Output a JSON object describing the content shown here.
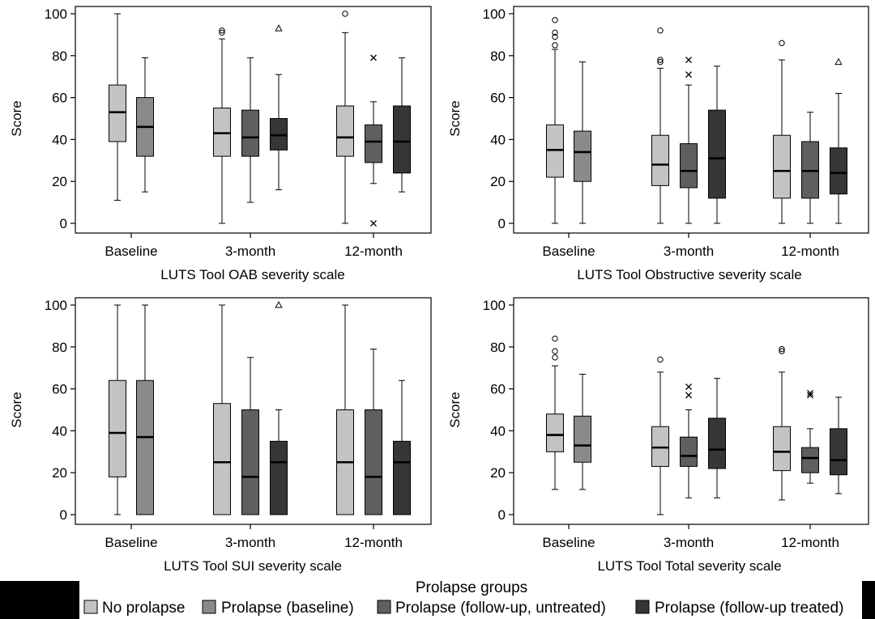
{
  "y_axis_label": "Score",
  "legend": {
    "title": "Prolapse groups",
    "items": [
      {
        "label": "No prolapse",
        "color": "#c3c3c3"
      },
      {
        "label": "Prolapse (baseline)",
        "color": "#8a8a8a"
      },
      {
        "label": "Prolapse (follow-up, untreated)",
        "color": "#5f5f5f"
      },
      {
        "label": "Prolapse (follow-up treated)",
        "color": "#363636"
      }
    ]
  },
  "chart_data": [
    {
      "type": "box",
      "xlabel": "LUTS Tool OAB severity scale",
      "ylabel": "Score",
      "ylim": [
        0,
        100
      ],
      "yticks": [
        0,
        20,
        40,
        60,
        80,
        100
      ],
      "categories": [
        "Baseline",
        "3-month",
        "12-month"
      ],
      "boxes": [
        {
          "category": "Baseline",
          "group": 0,
          "min": 11,
          "q1": 39,
          "median": 53,
          "q3": 66,
          "max": 100,
          "outliers": []
        },
        {
          "category": "Baseline",
          "group": 1,
          "min": 15,
          "q1": 32,
          "median": 46,
          "q3": 60,
          "max": 79,
          "outliers": []
        },
        {
          "category": "3-month",
          "group": 0,
          "min": 0,
          "q1": 32,
          "median": 43,
          "q3": 55,
          "max": 88,
          "outliers": [
            {
              "v": 92,
              "m": "o"
            },
            {
              "v": 91,
              "m": "o"
            }
          ]
        },
        {
          "category": "3-month",
          "group": 2,
          "min": 10,
          "q1": 32,
          "median": 41,
          "q3": 54,
          "max": 79,
          "outliers": []
        },
        {
          "category": "3-month",
          "group": 3,
          "min": 16,
          "q1": 35,
          "median": 42,
          "q3": 50,
          "max": 71,
          "outliers": [
            {
              "v": 93,
              "m": "^"
            }
          ]
        },
        {
          "category": "12-month",
          "group": 0,
          "min": 0,
          "q1": 32,
          "median": 41,
          "q3": 56,
          "max": 91,
          "outliers": [
            {
              "v": 100,
              "m": "o"
            }
          ]
        },
        {
          "category": "12-month",
          "group": 2,
          "min": 19,
          "q1": 29,
          "median": 39,
          "q3": 47,
          "max": 58,
          "outliers": [
            {
              "v": 79,
              "m": "x"
            },
            {
              "v": 0,
              "m": "x"
            }
          ]
        },
        {
          "category": "12-month",
          "group": 3,
          "min": 15,
          "q1": 24,
          "median": 39,
          "q3": 56,
          "max": 79,
          "outliers": []
        }
      ]
    },
    {
      "type": "box",
      "xlabel": "LUTS Tool Obstructive severity scale",
      "ylabel": "Score",
      "ylim": [
        0,
        100
      ],
      "yticks": [
        0,
        20,
        40,
        60,
        80,
        100
      ],
      "categories": [
        "Baseline",
        "3-month",
        "12-month"
      ],
      "boxes": [
        {
          "category": "Baseline",
          "group": 0,
          "min": 0,
          "q1": 22,
          "median": 35,
          "q3": 47,
          "max": 83,
          "outliers": [
            {
              "v": 97,
              "m": "o"
            },
            {
              "v": 91,
              "m": "o"
            },
            {
              "v": 89,
              "m": "o"
            },
            {
              "v": 85,
              "m": "o"
            }
          ]
        },
        {
          "category": "Baseline",
          "group": 1,
          "min": 0,
          "q1": 20,
          "median": 34,
          "q3": 44,
          "max": 77,
          "outliers": []
        },
        {
          "category": "3-month",
          "group": 0,
          "min": 0,
          "q1": 18,
          "median": 28,
          "q3": 42,
          "max": 74,
          "outliers": [
            {
              "v": 92,
              "m": "o"
            },
            {
              "v": 78,
              "m": "o"
            },
            {
              "v": 77,
              "m": "o"
            }
          ]
        },
        {
          "category": "3-month",
          "group": 2,
          "min": 0,
          "q1": 17,
          "median": 25,
          "q3": 38,
          "max": 66,
          "outliers": [
            {
              "v": 78,
              "m": "x"
            },
            {
              "v": 71,
              "m": "x"
            }
          ]
        },
        {
          "category": "3-month",
          "group": 3,
          "min": 0,
          "q1": 12,
          "median": 31,
          "q3": 54,
          "max": 75,
          "outliers": []
        },
        {
          "category": "12-month",
          "group": 0,
          "min": 0,
          "q1": 12,
          "median": 25,
          "q3": 42,
          "max": 78,
          "outliers": [
            {
              "v": 86,
              "m": "o"
            }
          ]
        },
        {
          "category": "12-month",
          "group": 2,
          "min": 0,
          "q1": 12,
          "median": 25,
          "q3": 39,
          "max": 53,
          "outliers": []
        },
        {
          "category": "12-month",
          "group": 3,
          "min": 0,
          "q1": 14,
          "median": 24,
          "q3": 36,
          "max": 62,
          "outliers": [
            {
              "v": 77,
              "m": "^"
            }
          ]
        }
      ]
    },
    {
      "type": "box",
      "xlabel": "LUTS Tool SUI severity scale",
      "ylabel": "Score",
      "ylim": [
        0,
        100
      ],
      "yticks": [
        0,
        20,
        40,
        60,
        80,
        100
      ],
      "categories": [
        "Baseline",
        "3-month",
        "12-month"
      ],
      "boxes": [
        {
          "category": "Baseline",
          "group": 0,
          "min": 0,
          "q1": 18,
          "median": 39,
          "q3": 64,
          "max": 100,
          "outliers": []
        },
        {
          "category": "Baseline",
          "group": 1,
          "min": 0,
          "q1": 0,
          "median": 37,
          "q3": 64,
          "max": 100,
          "outliers": []
        },
        {
          "category": "3-month",
          "group": 0,
          "min": 0,
          "q1": 0,
          "median": 25,
          "q3": 53,
          "max": 100,
          "outliers": []
        },
        {
          "category": "3-month",
          "group": 2,
          "min": 0,
          "q1": 0,
          "median": 18,
          "q3": 50,
          "max": 75,
          "outliers": []
        },
        {
          "category": "3-month",
          "group": 3,
          "min": 0,
          "q1": 0,
          "median": 25,
          "q3": 35,
          "max": 50,
          "outliers": [
            {
              "v": 100,
              "m": "^"
            }
          ]
        },
        {
          "category": "12-month",
          "group": 0,
          "min": 0,
          "q1": 0,
          "median": 25,
          "q3": 50,
          "max": 100,
          "outliers": []
        },
        {
          "category": "12-month",
          "group": 2,
          "min": 0,
          "q1": 0,
          "median": 18,
          "q3": 50,
          "max": 79,
          "outliers": []
        },
        {
          "category": "12-month",
          "group": 3,
          "min": 0,
          "q1": 0,
          "median": 25,
          "q3": 35,
          "max": 64,
          "outliers": []
        }
      ]
    },
    {
      "type": "box",
      "xlabel": "LUTS Tool Total severity scale",
      "ylabel": "Score",
      "ylim": [
        0,
        100
      ],
      "yticks": [
        0,
        20,
        40,
        60,
        80,
        100
      ],
      "categories": [
        "Baseline",
        "3-month",
        "12-month"
      ],
      "boxes": [
        {
          "category": "Baseline",
          "group": 0,
          "min": 12,
          "q1": 30,
          "median": 38,
          "q3": 48,
          "max": 71,
          "outliers": [
            {
              "v": 84,
              "m": "o"
            },
            {
              "v": 78,
              "m": "o"
            },
            {
              "v": 75,
              "m": "o"
            }
          ]
        },
        {
          "category": "Baseline",
          "group": 1,
          "min": 12,
          "q1": 25,
          "median": 33,
          "q3": 47,
          "max": 67,
          "outliers": []
        },
        {
          "category": "3-month",
          "group": 0,
          "min": 0,
          "q1": 23,
          "median": 32,
          "q3": 42,
          "max": 68,
          "outliers": [
            {
              "v": 74,
              "m": "o"
            }
          ]
        },
        {
          "category": "3-month",
          "group": 2,
          "min": 8,
          "q1": 23,
          "median": 28,
          "q3": 37,
          "max": 50,
          "outliers": [
            {
              "v": 61,
              "m": "x"
            },
            {
              "v": 57,
              "m": "x"
            }
          ]
        },
        {
          "category": "3-month",
          "group": 3,
          "min": 8,
          "q1": 22,
          "median": 31,
          "q3": 46,
          "max": 65,
          "outliers": []
        },
        {
          "category": "12-month",
          "group": 0,
          "min": 7,
          "q1": 21,
          "median": 30,
          "q3": 42,
          "max": 68,
          "outliers": [
            {
              "v": 79,
              "m": "o"
            },
            {
              "v": 78,
              "m": "o"
            }
          ]
        },
        {
          "category": "12-month",
          "group": 2,
          "min": 15,
          "q1": 20,
          "median": 27,
          "q3": 32,
          "max": 41,
          "outliers": [
            {
              "v": 58,
              "m": "x"
            },
            {
              "v": 57,
              "m": "x"
            }
          ]
        },
        {
          "category": "12-month",
          "group": 3,
          "min": 10,
          "q1": 19,
          "median": 26,
          "q3": 41,
          "max": 56,
          "outliers": []
        }
      ]
    }
  ]
}
